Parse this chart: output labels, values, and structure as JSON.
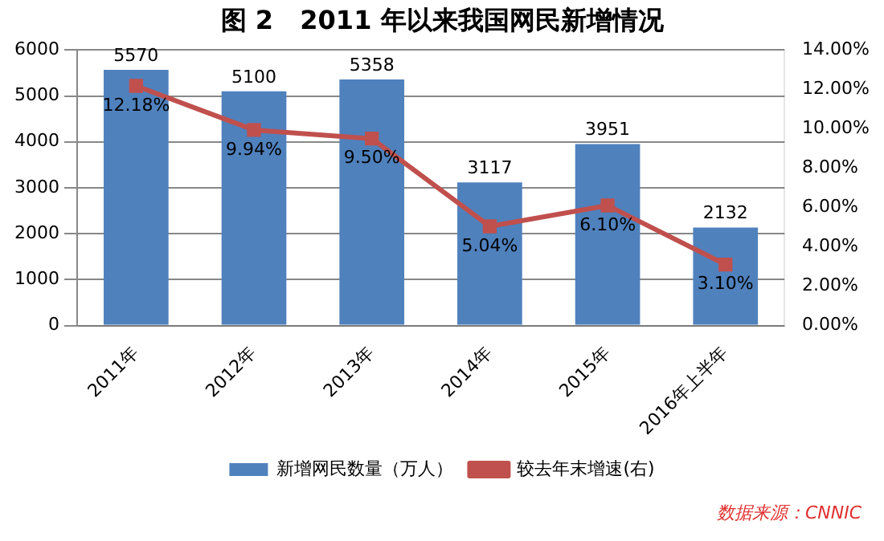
{
  "chart_data": {
    "type": "bar",
    "title": "图 2   2011 年以来我国网民新增情况",
    "categories": [
      "2011年",
      "2012年",
      "2013年",
      "2014年",
      "2015年",
      "2016年上半年"
    ],
    "series": [
      {
        "name": "新增网民数量（万人）",
        "color": "#4f81bd",
        "values": [
          5570,
          5100,
          5358,
          3117,
          3951,
          2132
        ],
        "value_labels": [
          "5570",
          "5100",
          "5358",
          "3117",
          "3951",
          "2132"
        ]
      },
      {
        "name": "较去年末增速(右)",
        "type": "line",
        "axis": "y2",
        "color": "#c0504d",
        "marker": "square",
        "values": [
          12.18,
          9.94,
          9.5,
          5.04,
          6.1,
          3.1
        ],
        "value_labels": [
          "12.18%",
          "9.94%",
          "9.50%",
          "5.04%",
          "6.10%",
          "3.10%"
        ]
      }
    ],
    "ylim": [
      0,
      6000
    ],
    "yticks": [
      0,
      1000,
      2000,
      3000,
      4000,
      5000,
      6000
    ],
    "y2lim": [
      0,
      14
    ],
    "y2ticks": [
      {
        "value": 0,
        "label": "0.00%"
      },
      {
        "value": 2,
        "label": "2.00%"
      },
      {
        "value": 4,
        "label": "4.00%"
      },
      {
        "value": 6,
        "label": "6.00%"
      },
      {
        "value": 8,
        "label": "8.00%"
      },
      {
        "value": 10,
        "label": "10.00%"
      },
      {
        "value": 12,
        "label": "12.00%"
      },
      {
        "value": 14,
        "label": "14.00%"
      }
    ],
    "grid": "y",
    "legend": "bottom",
    "annotations": [
      "数据来源：CNNIC"
    ]
  }
}
